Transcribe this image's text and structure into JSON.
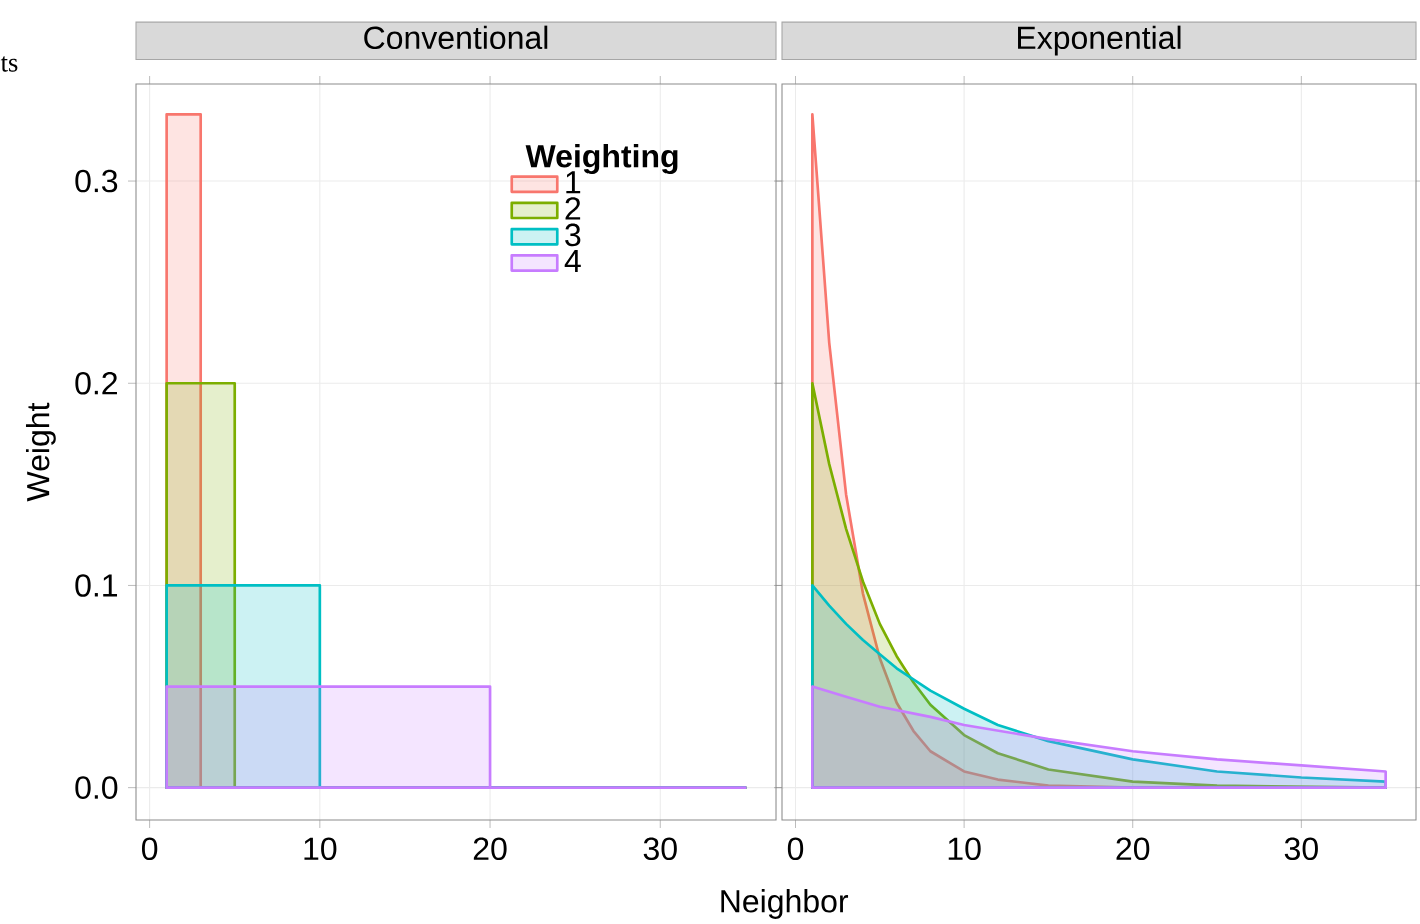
{
  "chart_data": [
    {
      "type": "area",
      "title": "Conventional",
      "xlabel": "Neighbor",
      "ylabel": "Weight",
      "legend_title": "Weighting",
      "legend": "top right",
      "grid": true,
      "annotations": [
        "ts"
      ],
      "xlim": [
        -0.8,
        36.8
      ],
      "ylim": [
        -0.016,
        0.348
      ],
      "xticks": [
        0,
        10,
        20,
        30
      ],
      "yticks": [
        {
          "value": 0,
          "label": "0.0"
        },
        {
          "value": 0.1,
          "label": "0.1"
        },
        {
          "value": 0.2,
          "label": "0.2"
        },
        {
          "value": 0.3,
          "label": "0.3"
        }
      ],
      "series": [
        {
          "name": "1",
          "color": "#F8766D",
          "x": [
            1,
            3,
            3,
            35
          ],
          "values": [
            0.333,
            0.333,
            0,
            0
          ]
        },
        {
          "name": "2",
          "color": "#7CAE00",
          "x": [
            1,
            5,
            5,
            35
          ],
          "values": [
            0.2,
            0.2,
            0,
            0
          ]
        },
        {
          "name": "3",
          "color": "#00BFC4",
          "x": [
            1,
            10,
            10,
            35
          ],
          "values": [
            0.1,
            0.1,
            0,
            0
          ]
        },
        {
          "name": "4",
          "color": "#C77CFF",
          "x": [
            1,
            20,
            20,
            35
          ],
          "values": [
            0.05,
            0.05,
            0,
            0
          ]
        }
      ]
    },
    {
      "type": "area",
      "title": "Exponential",
      "grid": true,
      "tick_labels": "x",
      "xlim": [
        -0.8,
        36.8
      ],
      "ylim": [
        -0.016,
        0.348
      ],
      "xticks": [
        0,
        10,
        20,
        30
      ],
      "yticks": [
        {
          "value": 0,
          "label": null
        },
        {
          "value": 0.1,
          "label": null
        },
        {
          "value": 0.2,
          "label": null
        },
        {
          "value": 0.3,
          "label": null
        }
      ],
      "series": [
        {
          "color": "#F8766D",
          "x": [
            1,
            2,
            3,
            4,
            5,
            6,
            7,
            8,
            10,
            12,
            15,
            20,
            35
          ],
          "values": [
            0.333,
            0.22,
            0.145,
            0.096,
            0.064,
            0.042,
            0.028,
            0.018,
            0.008,
            0.004,
            0.001,
            0,
            0
          ]
        },
        {
          "color": "#7CAE00",
          "x": [
            1,
            2,
            3,
            4,
            5,
            6,
            7,
            8,
            10,
            12,
            15,
            20,
            25,
            35
          ],
          "values": [
            0.2,
            0.16,
            0.128,
            0.102,
            0.081,
            0.065,
            0.052,
            0.041,
            0.026,
            0.017,
            0.009,
            0.003,
            0.001,
            0
          ]
        },
        {
          "color": "#00BFC4",
          "x": [
            1,
            2,
            3,
            4,
            5,
            6,
            8,
            10,
            12,
            15,
            20,
            25,
            30,
            35
          ],
          "values": [
            0.1,
            0.09,
            0.081,
            0.073,
            0.066,
            0.059,
            0.048,
            0.039,
            0.031,
            0.023,
            0.014,
            0.008,
            0.005,
            0.003
          ]
        },
        {
          "color": "#C77CFF",
          "x": [
            1,
            3,
            5,
            8,
            10,
            15,
            20,
            25,
            30,
            35
          ],
          "values": [
            0.05,
            0.045,
            0.04,
            0.035,
            0.031,
            0.024,
            0.018,
            0.014,
            0.011,
            0.008
          ]
        }
      ]
    }
  ]
}
